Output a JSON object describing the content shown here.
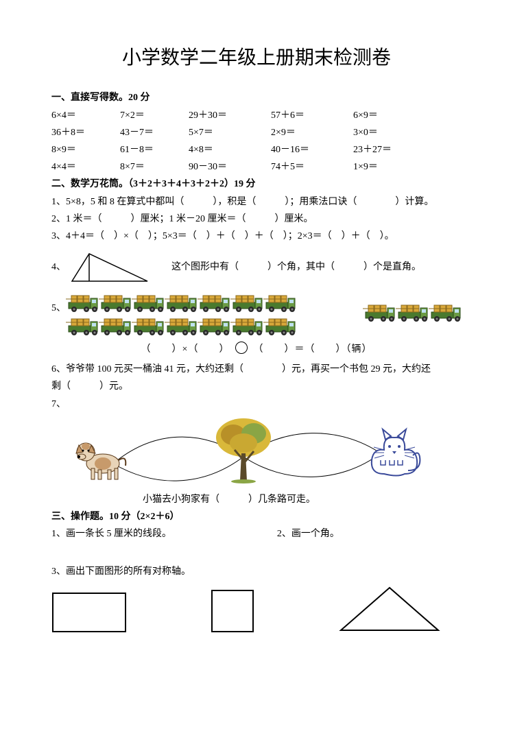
{
  "title": "小学数学二年级上册期末检测卷",
  "s1": {
    "head": "一、直接写得数。20 分",
    "rows": [
      [
        "6×4＝",
        "7×2＝",
        "29＋30＝",
        "57＋6＝",
        "6×9＝"
      ],
      [
        "36＋8＝",
        "43－7＝",
        "5×7＝",
        "2×9＝",
        "3×0＝"
      ],
      [
        "8×9＝",
        "61－8＝",
        "4×8＝",
        "40－16＝",
        "23＋27＝"
      ],
      [
        "4×4＝",
        "8×7＝",
        "90－30＝",
        "74＋5＝",
        "1×9＝"
      ]
    ]
  },
  "s2": {
    "head": "二、数学万花筒。（3＋2＋3＋4＋3＋2＋2）19 分",
    "q1": "1、5×8，5 和 8 在算式中都叫（　　　），积是（　　　）；用乘法口诀（　　　　）计算。",
    "q2": "2、1 米＝（　　　）厘米；1 米－20 厘米＝（　　　）厘米。",
    "q3": "3、4＋4＝（　）×（　）；5×3＝（　）＋（　）＋（　）；2×3＝（　）＋（　）。",
    "q4_pre": "4、",
    "q4_post": "这个图形中有（　　　）个角，其中（　　　）个是直角。",
    "q5_pre": "5、",
    "q5_eq_a": "（　　）×（　　）",
    "q5_eq_b": "（　　）＝（　　）（辆）",
    "q6": "6、爷爷带 100 元买一桶油 41 元，大约还剩（　　　　）元，再买一个书包 29 元，大约还",
    "q6b": "剩（　　　）元。",
    "q7_pre": "7、",
    "q7_text": "小猫去小狗家有（　　　）几条路可走。"
  },
  "s3": {
    "head": "三、操作题。10 分（2×2＋6）",
    "q1": "1、画一条长 5 厘米的线段。",
    "q2": "2、画一个角。",
    "q3": "3、画出下面图形的所有对称轴。"
  },
  "truck": {
    "body": "#4a7a2e",
    "body_light": "#6b9b44",
    "wheel": "#2a2a2a",
    "cargo": "#d9a83a",
    "cargo_line": "#8a6a1e"
  },
  "triangle_q4": {
    "stroke": "#000"
  },
  "dog_colors": {
    "fur": "#c79a6b",
    "fur2": "#e8d4b8",
    "line": "#5a3a1a"
  },
  "tree_colors": {
    "trunk": "#5a4a2a",
    "leaf1": "#d9b83a",
    "leaf2": "#b89028",
    "leaf3": "#8aa545"
  },
  "cat_colors": {
    "line": "#3a4a9a",
    "fill": "#fff"
  },
  "shapes": {
    "stroke": "#000"
  }
}
